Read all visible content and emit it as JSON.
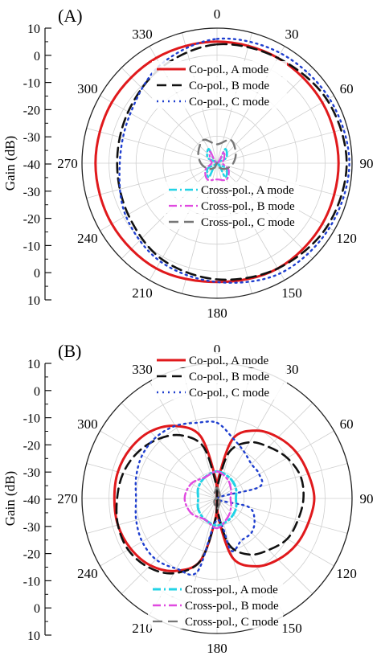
{
  "chart_data": [
    {
      "type": "polar-line",
      "panel_label": "(A)",
      "ylabel": "Gain (dB)",
      "radial_range": [
        -40,
        10
      ],
      "radial_ticks_left": [
        "10",
        "0",
        "-10",
        "-20",
        "-30",
        "-40",
        "-30",
        "-20",
        "-10",
        "0",
        "10"
      ],
      "angle_ticks": [
        "0",
        "30",
        "60",
        "90",
        "120",
        "150",
        "180",
        "210",
        "240",
        "270",
        "300",
        "330"
      ],
      "grid": true,
      "legend_position": "inside",
      "series": [
        {
          "name": "Co-pol., A mode",
          "color": "#e0191c",
          "dash": "solid",
          "width": 3,
          "angles": [
            0,
            30,
            60,
            90,
            120,
            150,
            180,
            210,
            240,
            270,
            300,
            330
          ],
          "gains": [
            5,
            5,
            5,
            5,
            5,
            5,
            4,
            5,
            5,
            5,
            5,
            5
          ]
        },
        {
          "name": "Co-pol., B mode",
          "color": "#111111",
          "dash": "dash",
          "width": 2.6,
          "angles": [
            0,
            30,
            60,
            90,
            120,
            150,
            180,
            210,
            240,
            270,
            300,
            330
          ],
          "gains": [
            4,
            5,
            7,
            8,
            7,
            5,
            3,
            1,
            -2,
            -3,
            -2,
            1
          ]
        },
        {
          "name": "Co-pol., C mode",
          "color": "#1f3fcf",
          "dash": "dot",
          "width": 2.4,
          "angles": [
            0,
            30,
            60,
            90,
            120,
            150,
            180,
            210,
            240,
            270,
            300,
            330
          ],
          "gains": [
            6,
            7,
            8,
            9,
            8,
            7,
            4,
            2,
            -1,
            -4,
            -3,
            2
          ]
        },
        {
          "name": "Cross-pol., A mode",
          "color": "#22d3e6",
          "dash": "dashdot",
          "width": 2.6,
          "angles": [
            0,
            30,
            60,
            90,
            120,
            150,
            180,
            210,
            240,
            270,
            300,
            330
          ],
          "gains": [
            -40,
            -34,
            -36,
            -40,
            -36,
            -34,
            -40,
            -34,
            -36,
            -40,
            -36,
            -34
          ]
        },
        {
          "name": "Cross-pol., B mode",
          "color": "#e04ae0",
          "dash": "dashdot",
          "width": 2.2,
          "angles": [
            0,
            30,
            60,
            90,
            120,
            150,
            180,
            210,
            240,
            270,
            300,
            330
          ],
          "gains": [
            -40,
            -35,
            -37,
            -38,
            -35,
            -33,
            -34,
            -33,
            -35,
            -38,
            -37,
            -35
          ]
        },
        {
          "name": "Cross-pol., C mode",
          "color": "#777777",
          "dash": "dash",
          "width": 2.4,
          "angles": [
            0,
            30,
            60,
            90,
            120,
            150,
            180,
            210,
            240,
            270,
            300,
            330
          ],
          "gains": [
            -33,
            -30,
            -32,
            -34,
            -36,
            -38,
            -40,
            -38,
            -36,
            -34,
            -32,
            -30
          ]
        }
      ]
    },
    {
      "type": "polar-line",
      "panel_label": "(B)",
      "ylabel": "Gain (dB)",
      "radial_range": [
        -40,
        10
      ],
      "radial_ticks_left": [
        "10",
        "0",
        "-10",
        "-20",
        "-30",
        "-40",
        "-30",
        "-20",
        "-10",
        "0",
        "10"
      ],
      "angle_ticks": [
        "0",
        "30",
        "60",
        "90",
        "120",
        "150",
        "180",
        "210",
        "240",
        "270",
        "300",
        "330"
      ],
      "grid": true,
      "legend_position": "inside",
      "series": [
        {
          "name": "Co-pol., A mode",
          "color": "#e0191c",
          "dash": "solid",
          "width": 3,
          "angles": [
            0,
            5,
            15,
            30,
            45,
            60,
            75,
            90,
            105,
            120,
            135,
            150,
            165,
            175,
            180,
            185,
            195,
            210,
            225,
            240,
            255,
            270,
            285,
            300,
            315,
            330,
            345,
            355
          ],
          "gains": [
            -40,
            -32,
            -17,
            -11,
            -8,
            -6,
            -5,
            -4,
            -5,
            -6,
            -8,
            -11,
            -17,
            -32,
            -40,
            -32,
            -16,
            -9,
            -5,
            -3,
            -2,
            -2,
            -2,
            -3,
            -5,
            -9,
            -16,
            -32
          ]
        },
        {
          "name": "Co-pol., B mode",
          "color": "#111111",
          "dash": "dash",
          "width": 2.6,
          "angles": [
            0,
            5,
            15,
            30,
            45,
            60,
            75,
            90,
            105,
            120,
            135,
            150,
            165,
            175,
            180,
            185,
            195,
            210,
            225,
            240,
            255,
            270,
            285,
            300,
            315,
            330,
            345,
            355
          ],
          "gains": [
            -40,
            -34,
            -22,
            -16,
            -13,
            -10,
            -8,
            -8,
            -9,
            -10,
            -13,
            -16,
            -22,
            -34,
            -40,
            -32,
            -16,
            -8,
            -4,
            -2,
            -2,
            -3,
            -4,
            -6,
            -9,
            -13,
            -20,
            -34
          ]
        },
        {
          "name": "Co-pol., C mode",
          "color": "#1f3fcf",
          "dash": "dot",
          "width": 2.4,
          "angles": [
            0,
            15,
            30,
            45,
            60,
            75,
            90,
            105,
            120,
            135,
            150,
            165,
            180,
            195,
            210,
            225,
            240,
            255,
            270,
            285,
            300,
            315,
            330,
            345
          ],
          "gains": [
            -12,
            -17,
            -20,
            -22,
            -22,
            -24,
            -40,
            -28,
            -24,
            -22,
            -22,
            -20,
            -32,
            -12,
            -10,
            -8,
            -8,
            -9,
            -10,
            -9,
            -8,
            -8,
            -9,
            -11
          ]
        },
        {
          "name": "Cross-pol., A mode",
          "color": "#22d3e6",
          "dash": "dashdot",
          "width": 3,
          "angles": [
            0,
            30,
            60,
            90,
            120,
            150,
            180,
            210,
            240,
            270,
            300,
            330
          ],
          "gains": [
            -30,
            -31,
            -32,
            -33,
            -32,
            -31,
            -30,
            -31,
            -32,
            -33,
            -32,
            -31
          ]
        },
        {
          "name": "Cross-pol., B mode",
          "color": "#e04ae0",
          "dash": "dashdot",
          "width": 2.4,
          "angles": [
            0,
            30,
            60,
            90,
            120,
            150,
            180,
            210,
            240,
            270,
            300,
            330
          ],
          "gains": [
            -30,
            -32,
            -34,
            -35,
            -34,
            -32,
            -29,
            -31,
            -29,
            -28,
            -29,
            -31
          ]
        },
        {
          "name": "Cross-pol., C mode",
          "color": "#777777",
          "dash": "dash",
          "width": 2.2,
          "angles": [
            0,
            30,
            60,
            90,
            120,
            150,
            180,
            210,
            240,
            270,
            300,
            330
          ],
          "gains": [
            -36,
            -38,
            -39,
            -40,
            -39,
            -38,
            -36,
            -38,
            -39,
            -40,
            -39,
            -38
          ]
        }
      ]
    }
  ]
}
